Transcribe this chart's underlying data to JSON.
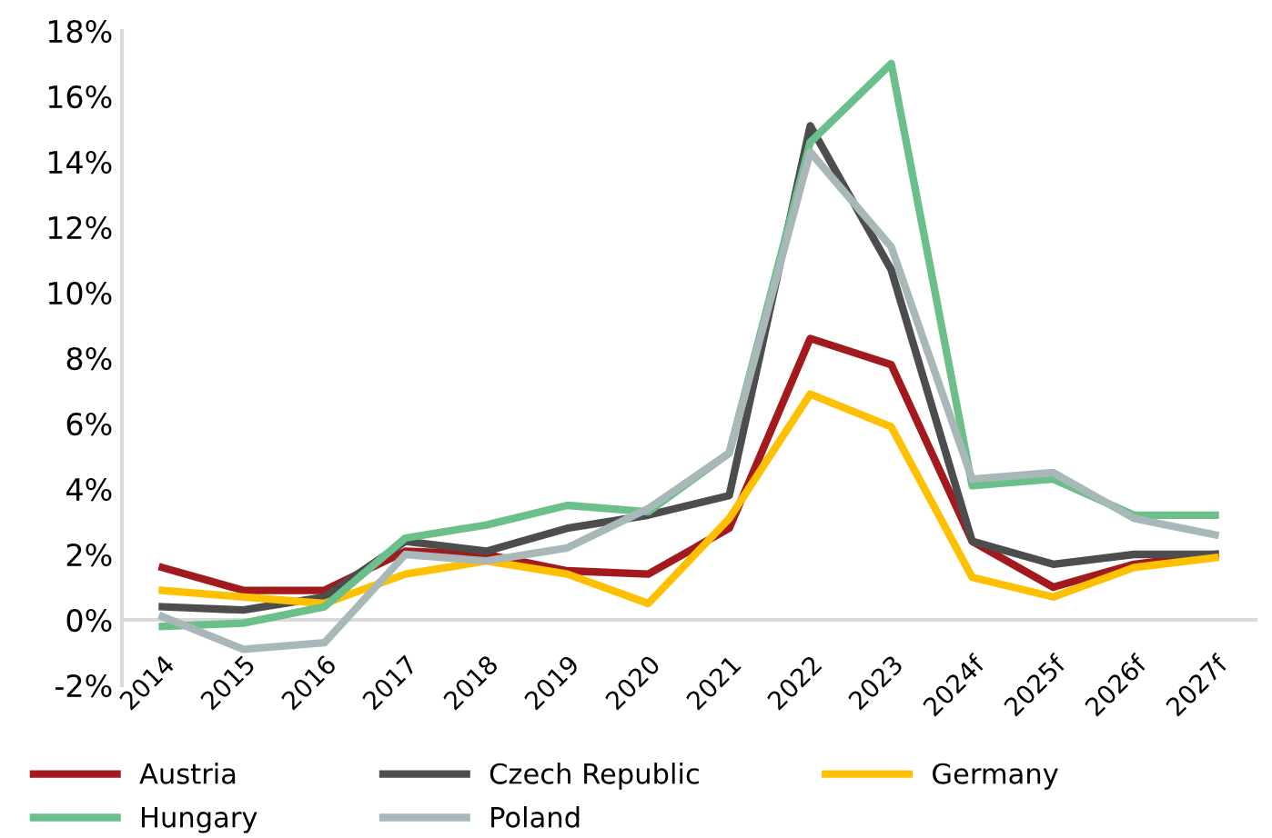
{
  "chart_data": {
    "type": "line",
    "categories": [
      "2014",
      "2015",
      "2016",
      "2017",
      "2018",
      "2019",
      "2020",
      "2021",
      "2022",
      "2023",
      "2024f",
      "2025f",
      "2026f",
      "2027f"
    ],
    "series": [
      {
        "name": "Austria",
        "color": "#a31a1e",
        "values": [
          1.6,
          0.9,
          0.9,
          2.1,
          2.0,
          1.5,
          1.4,
          2.8,
          8.6,
          7.8,
          2.4,
          1.0,
          1.7,
          2.0
        ]
      },
      {
        "name": "Czech Republic",
        "color": "#4d4d4d",
        "values": [
          0.4,
          0.3,
          0.7,
          2.4,
          2.1,
          2.8,
          3.2,
          3.8,
          15.1,
          10.7,
          2.4,
          1.7,
          2.0,
          2.0
        ]
      },
      {
        "name": "Germany",
        "color": "#ffc000",
        "values": [
          0.9,
          0.7,
          0.5,
          1.4,
          1.8,
          1.4,
          0.5,
          3.1,
          6.9,
          5.9,
          1.3,
          0.7,
          1.6,
          1.9
        ]
      },
      {
        "name": "Hungary",
        "color": "#6abf8a",
        "values": [
          -0.2,
          -0.1,
          0.4,
          2.5,
          2.9,
          3.5,
          3.3,
          5.1,
          14.6,
          17.0,
          4.1,
          4.3,
          3.2,
          3.2
        ]
      },
      {
        "name": "Poland",
        "color": "#a8b8b8",
        "values": [
          0.1,
          -0.9,
          -0.7,
          2.0,
          1.8,
          2.2,
          3.4,
          5.1,
          14.3,
          11.4,
          4.3,
          4.5,
          3.1,
          2.6
        ]
      }
    ],
    "ylim": [
      -2,
      18
    ],
    "yticks": [
      {
        "value": -2,
        "label": "-2%"
      },
      {
        "value": 0,
        "label": "0%"
      },
      {
        "value": 2,
        "label": "2%"
      },
      {
        "value": 4,
        "label": "4%"
      },
      {
        "value": 6,
        "label": "6%"
      },
      {
        "value": 8,
        "label": "8%"
      },
      {
        "value": 10,
        "label": "10%"
      },
      {
        "value": 12,
        "label": "12%"
      },
      {
        "value": 14,
        "label": "14%"
      },
      {
        "value": 16,
        "label": "16%"
      },
      {
        "value": 18,
        "label": "18%"
      }
    ],
    "grid": false,
    "legend": "bottom",
    "marker": "none",
    "line_style": "solid"
  }
}
